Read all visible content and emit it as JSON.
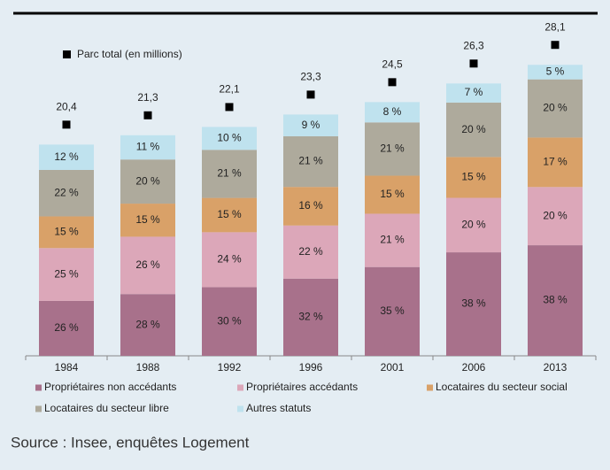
{
  "chart_data": {
    "type": "bar",
    "stacked": true,
    "categories": [
      "1984",
      "1988",
      "1992",
      "1996",
      "2001",
      "2006",
      "2013"
    ],
    "series": [
      {
        "name": "Propriétaires non accédants",
        "color": "#a8718b",
        "values": [
          26,
          28,
          30,
          32,
          35,
          38,
          38
        ],
        "value_labels": [
          "26 %",
          "28 %",
          "30 %",
          "32 %",
          "35 %",
          "38 %",
          "38 %"
        ]
      },
      {
        "name": "Propriétaires accédants",
        "color": "#dca7b9",
        "values": [
          25,
          26,
          24,
          22,
          21,
          20,
          20
        ],
        "value_labels": [
          "25 %",
          "26 %",
          "24 %",
          "22 %",
          "21 %",
          "20 %",
          "20 %"
        ]
      },
      {
        "name": "Locataires du secteur social",
        "color": "#d9a168",
        "values": [
          15,
          15,
          15,
          16,
          15,
          15,
          17
        ],
        "value_labels": [
          "15 %",
          "15 %",
          "15 %",
          "16 %",
          "15 %",
          "15 %",
          "17 %"
        ]
      },
      {
        "name": "Locataires du secteur libre",
        "color": "#aeaa9c",
        "values": [
          22,
          20,
          21,
          21,
          21,
          20,
          20
        ],
        "value_labels": [
          "22 %",
          "20 %",
          "21 %",
          "21 %",
          "21 %",
          "20 %",
          "20 %"
        ]
      },
      {
        "name": "Autres statuts",
        "color": "#bfe2ee",
        "values": [
          12,
          11,
          10,
          9,
          8,
          7,
          5
        ],
        "value_labels": [
          "12 %",
          "11 %",
          "10 %",
          "9 %",
          "8 %",
          "7 %",
          "5 %"
        ]
      }
    ],
    "totals": {
      "name": "Parc total (en millions)",
      "type": "marker",
      "color": "#000000",
      "values": [
        20.4,
        21.3,
        22.1,
        23.3,
        24.5,
        26.3,
        28.1
      ],
      "value_labels": [
        "20,4",
        "21,3",
        "22,1",
        "23,3",
        "24,5",
        "26,3",
        "28,1"
      ]
    },
    "source": "Source : Insee, enquêtes Logement"
  }
}
